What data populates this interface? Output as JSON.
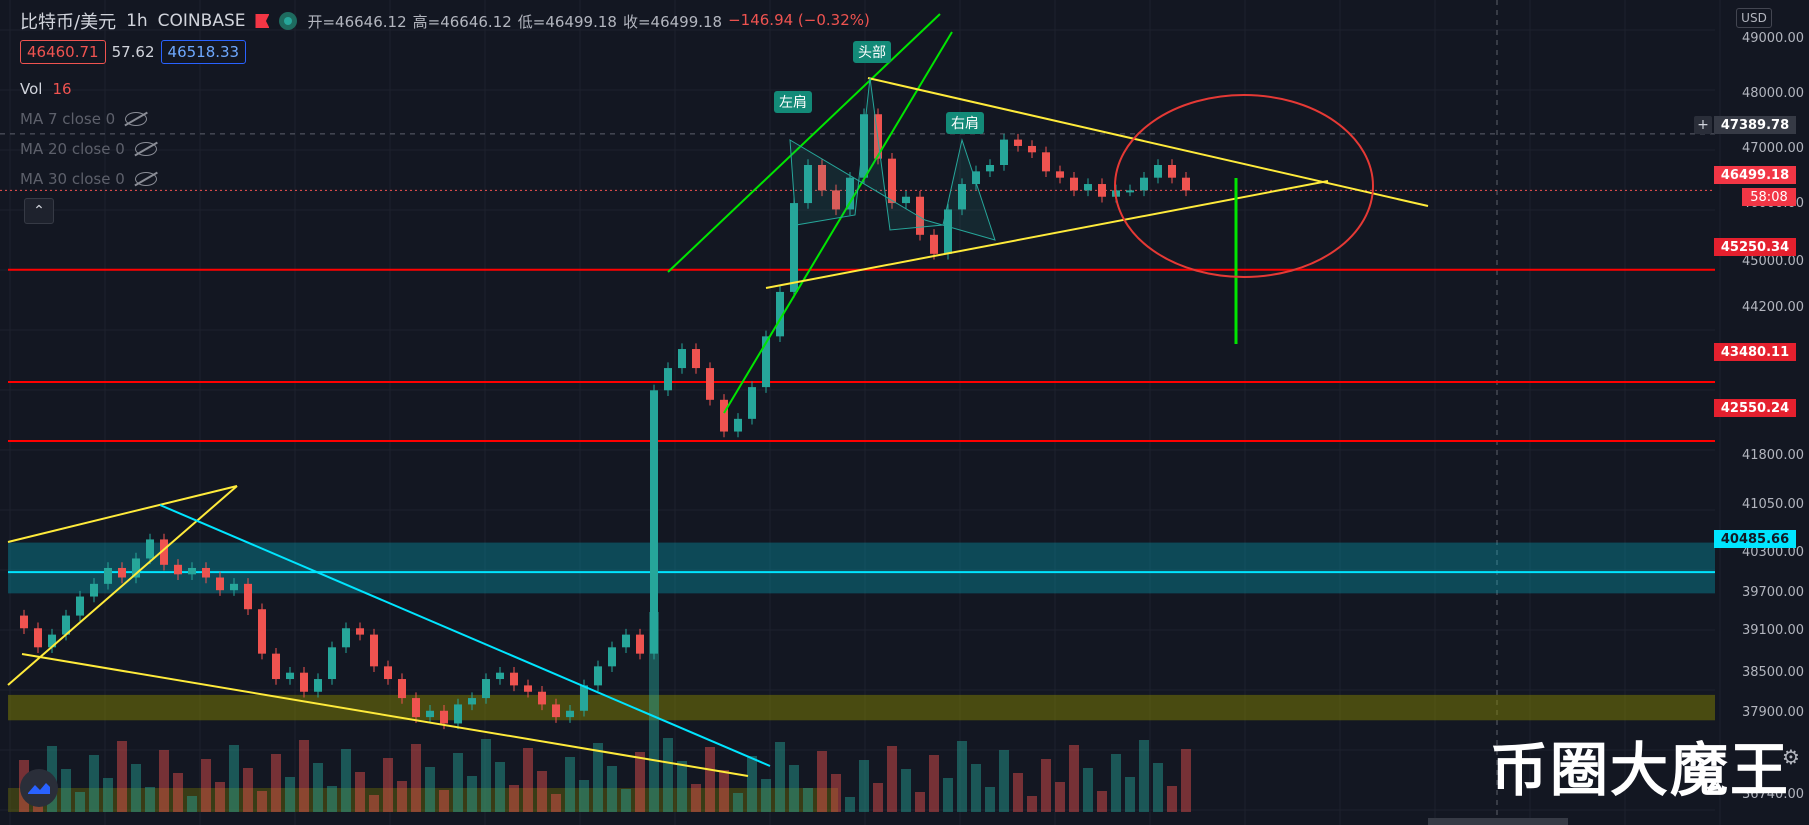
{
  "header": {
    "symbol": "比特币/美元",
    "interval": "1h",
    "exchange": "COINBASE",
    "open_label": "开=46646.12",
    "high_label": "高=46646.12",
    "low_label": "低=46499.18",
    "close_label": "收=46499.18",
    "change": "−146.94 (−0.32%)"
  },
  "price_box": {
    "sell": "46460.71",
    "spread": "57.62",
    "buy": "46518.33"
  },
  "indicators": {
    "vol_label": "Vol",
    "vol_value": "16",
    "ma7": "MA 7 close 0",
    "ma20": "MA 20 close 0",
    "ma30": "MA 30 close 0"
  },
  "collapse_glyph": "⌃",
  "currency": "USD",
  "watermark": "币圈大魔王",
  "icons": {
    "live": "live-dot-icon",
    "flag": "flag-icon",
    "eye": "eye-hidden-icon",
    "gear": "gear-icon",
    "logo": "tradingview-logo-icon"
  },
  "colors": {
    "up": "#26a69a",
    "down": "#ef5350",
    "bg": "#131722",
    "support": "#ff0000",
    "zone": "#00e5ff",
    "trend": "#ffeb3b",
    "channel": "#00e600"
  },
  "price_axis": [
    "49000.00",
    "48000.00",
    "47000.00",
    "46000.00",
    "45000.00",
    "44200.00",
    "41800.00",
    "41050.00",
    "40300.00",
    "39700.00",
    "39100.00",
    "38500.00",
    "37900.00",
    "36740.00"
  ],
  "price_labels": {
    "crosshair": "47389.78",
    "current": "46499.18",
    "countdown": "58:08",
    "r1": "45250.34",
    "r2": "43480.11",
    "r3": "42550.24",
    "zone": "40485.66"
  },
  "pattern_labels": {
    "left_shoulder": "左肩",
    "head": "头部",
    "right_shoulder": "右肩"
  },
  "chart_data": {
    "type": "candlestick",
    "ylim": [
      36500,
      49500
    ],
    "horizontal_levels": [
      45250.34,
      43480.11,
      42550.24
    ],
    "zone_level": 40485.66,
    "zone_range": [
      40150,
      40950
    ],
    "lower_zone_range": [
      38150,
      38550
    ],
    "current_price": 46499.18,
    "crosshair_price": 47389.78
  }
}
